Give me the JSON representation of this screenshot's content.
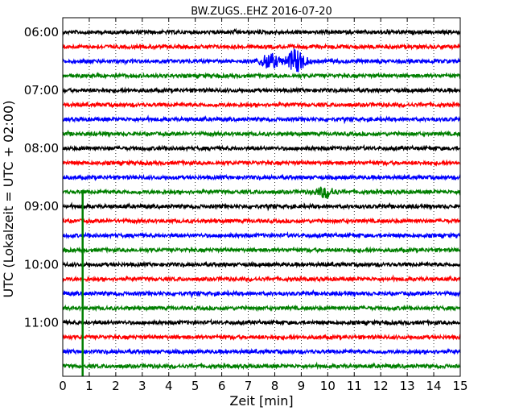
{
  "chart_data": {
    "type": "line",
    "title": "BW.ZUGS..EHZ 2016-07-20",
    "xlabel": "Zeit  [min]",
    "ylabel": "UTC (Lokalzeit = UTC + 02:00)",
    "xlim": [
      0,
      15
    ],
    "x_ticks": [
      "0",
      "1",
      "2",
      "3",
      "4",
      "5",
      "6",
      "7",
      "8",
      "9",
      "10",
      "11",
      "12",
      "13",
      "14",
      "15"
    ],
    "y_tick_labels": [
      "06:00",
      "07:00",
      "08:00",
      "09:00",
      "10:00",
      "11:00"
    ],
    "y_tick_trace_index": [
      0,
      4,
      8,
      12,
      16,
      20
    ],
    "grid": "x-dotted",
    "trace_colors": [
      "#000000",
      "#ff0000",
      "#0000ff",
      "#007f00"
    ],
    "traces": [
      {
        "start": "06:00",
        "color": "#000000"
      },
      {
        "start": "06:15",
        "color": "#ff0000"
      },
      {
        "start": "06:30",
        "color": "#0000ff",
        "events": [
          {
            "t_min": 7.8,
            "amp": 9
          },
          {
            "t_min": 8.8,
            "amp": 14
          }
        ]
      },
      {
        "start": "06:45",
        "color": "#007f00"
      },
      {
        "start": "07:00",
        "color": "#000000"
      },
      {
        "start": "07:15",
        "color": "#ff0000"
      },
      {
        "start": "07:30",
        "color": "#0000ff"
      },
      {
        "start": "07:45",
        "color": "#007f00"
      },
      {
        "start": "08:00",
        "color": "#000000"
      },
      {
        "start": "08:15",
        "color": "#ff0000"
      },
      {
        "start": "08:30",
        "color": "#0000ff"
      },
      {
        "start": "08:45",
        "color": "#007f00",
        "events": [
          {
            "t_min": 9.9,
            "amp": 6
          }
        ]
      },
      {
        "start": "09:00",
        "color": "#000000"
      },
      {
        "start": "09:15",
        "color": "#ff0000"
      },
      {
        "start": "09:30",
        "color": "#0000ff"
      },
      {
        "start": "09:45",
        "color": "#007f00"
      },
      {
        "start": "10:00",
        "color": "#000000"
      },
      {
        "start": "10:15",
        "color": "#ff0000"
      },
      {
        "start": "10:30",
        "color": "#0000ff"
      },
      {
        "start": "10:45",
        "color": "#007f00"
      },
      {
        "start": "11:00",
        "color": "#000000"
      },
      {
        "start": "11:15",
        "color": "#ff0000"
      },
      {
        "start": "11:30",
        "color": "#0000ff"
      },
      {
        "start": "11:45",
        "color": "#007f00"
      }
    ],
    "marker": {
      "t_min": 0.75,
      "from": "08:45",
      "to": "11:45",
      "color": "#007f00"
    }
  }
}
